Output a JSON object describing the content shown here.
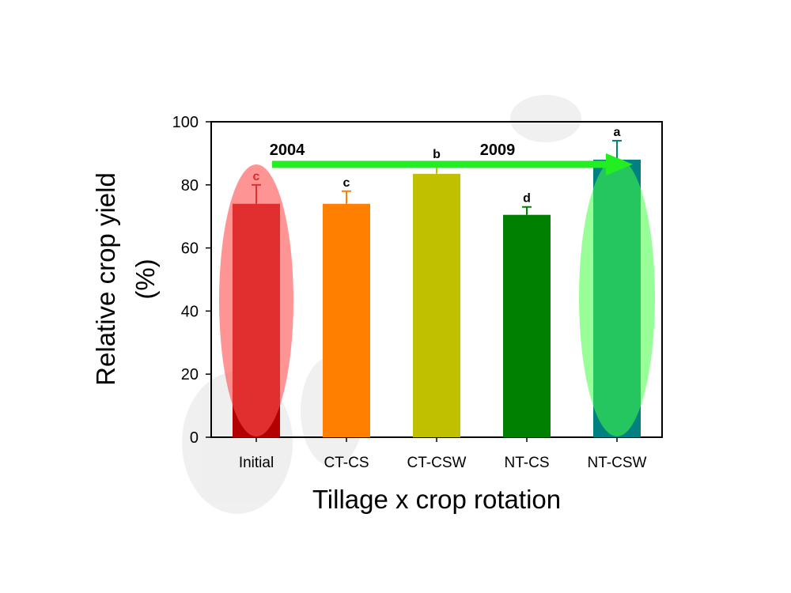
{
  "chart_data": {
    "type": "bar",
    "xlabel": "Tillage x crop rotation",
    "ylabel_line1": "Relative crop yield",
    "ylabel_line2": "(%)",
    "ylim": [
      0,
      100
    ],
    "yticks": [
      0,
      20,
      40,
      60,
      80,
      100
    ],
    "categories": [
      "Initial",
      "CT-CS",
      "CT-CSW",
      "NT-CS",
      "NT-CSW"
    ],
    "values": [
      74,
      74,
      83.5,
      70.5,
      88
    ],
    "errors": [
      6,
      4,
      3.5,
      2.5,
      6
    ],
    "significance_letters": [
      "c",
      "c",
      "b",
      "d",
      "a"
    ],
    "bar_colors": [
      "#b30000",
      "#ff8000",
      "#c0c000",
      "#008000",
      "#008080"
    ],
    "error_colors": [
      "#b30000",
      "#ff8000",
      "#c0c000",
      "#008000",
      "#008080"
    ],
    "letter_colors": [
      "#8b0000",
      "#000000",
      "#000000",
      "#000000",
      "#000000"
    ],
    "annotations": {
      "start_year": "2004",
      "end_year": "2009",
      "arrow_color": "#22ee22",
      "start_ellipse_color": "#ff4d4d",
      "end_ellipse_color": "#44ff44"
    },
    "grid": false,
    "legend": "none"
  }
}
